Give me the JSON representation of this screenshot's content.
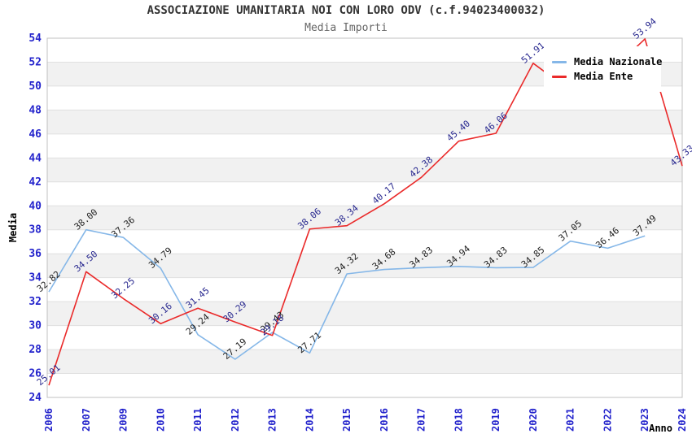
{
  "chart_data": {
    "type": "line",
    "title": "ASSOCIAZIONE UMANITARIA NOI CON LORO ODV (c.f.94023400032)",
    "subtitle": "Media Importi",
    "xlabel": "Anno",
    "ylabel": "Media",
    "ylim": [
      24,
      54
    ],
    "y_ticks": [
      24,
      26,
      28,
      30,
      32,
      34,
      36,
      38,
      40,
      42,
      44,
      46,
      48,
      50,
      52,
      54
    ],
    "grid": "horizontal-bands",
    "legend_position": "top-right",
    "categories": [
      "2006",
      "2007",
      "2009",
      "2010",
      "2011",
      "2012",
      "2013",
      "2014",
      "2015",
      "2016",
      "2017",
      "2018",
      "2019",
      "2020",
      "2021",
      "2022",
      "2023",
      "2024"
    ],
    "series": [
      {
        "name": "Media Nazionale",
        "color": "#85b7e8",
        "label_color": "#222222",
        "values": [
          32.82,
          38.0,
          37.36,
          34.79,
          29.24,
          27.19,
          29.43,
          27.71,
          34.32,
          34.68,
          34.83,
          34.94,
          34.83,
          34.85,
          37.05,
          36.46,
          37.49,
          null
        ],
        "labels": [
          "32.82",
          "38.00",
          "37.36",
          "34.79",
          "29.24",
          "27.19",
          "29.43",
          "27.71",
          "34.32",
          "34.68",
          "34.83",
          "34.94",
          "34.83",
          "34.85",
          "37.05",
          "36.46",
          "37.49",
          ""
        ]
      },
      {
        "name": "Media Ente",
        "color": "#ea2a2a",
        "label_color": "#28288f",
        "values": [
          25.01,
          34.5,
          32.25,
          30.16,
          31.45,
          30.29,
          29.18,
          38.06,
          38.34,
          40.17,
          42.38,
          45.4,
          46.06,
          51.91,
          49.6,
          51.0,
          53.94,
          43.33
        ],
        "labels": [
          "25.01",
          "34.50",
          "32.25",
          "30.16",
          "31.45",
          "30.29",
          "29.18",
          "38.06",
          "38.34",
          "40.17",
          "42.38",
          "45.40",
          "46.06",
          "51.91",
          "",
          "",
          "53.94",
          "43.33"
        ]
      }
    ],
    "colors": {
      "axis_tick_labels": "#2323cc",
      "band_fill": "#f1f1f1",
      "gridline": "#e0e0e0",
      "plot_border": "#c0c0c0",
      "axis_titles": "#000000"
    }
  }
}
